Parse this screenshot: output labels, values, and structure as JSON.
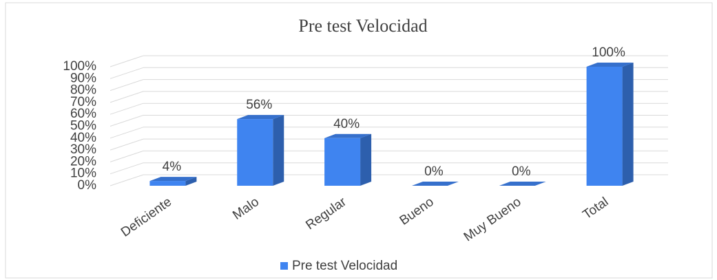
{
  "chart_data": {
    "type": "bar3d",
    "title": "Pre test Velocidad",
    "categories": [
      "Deficiente",
      "Malo",
      "Regular",
      "Bueno",
      "Muy Bueno",
      "Total"
    ],
    "series": [
      {
        "name": "Pre test Velocidad",
        "color": "#3f84f0",
        "values": [
          4,
          56,
          40,
          0,
          0,
          100
        ],
        "value_labels": [
          "4%",
          "56%",
          "40%",
          "0%",
          "0%",
          "100%"
        ]
      }
    ],
    "ylim": [
      0,
      100
    ],
    "yticks": [
      {
        "value": 0,
        "label": "0%"
      },
      {
        "value": 10,
        "label": "10%"
      },
      {
        "value": 20,
        "label": "20%"
      },
      {
        "value": 30,
        "label": "30%"
      },
      {
        "value": 40,
        "label": "40%"
      },
      {
        "value": 50,
        "label": "50%"
      },
      {
        "value": 60,
        "label": "60%"
      },
      {
        "value": 70,
        "label": "70%"
      },
      {
        "value": 80,
        "label": "80%"
      },
      {
        "value": 90,
        "label": "90%"
      },
      {
        "value": 100,
        "label": "100%"
      }
    ],
    "grid": true,
    "legend": "bottom"
  }
}
